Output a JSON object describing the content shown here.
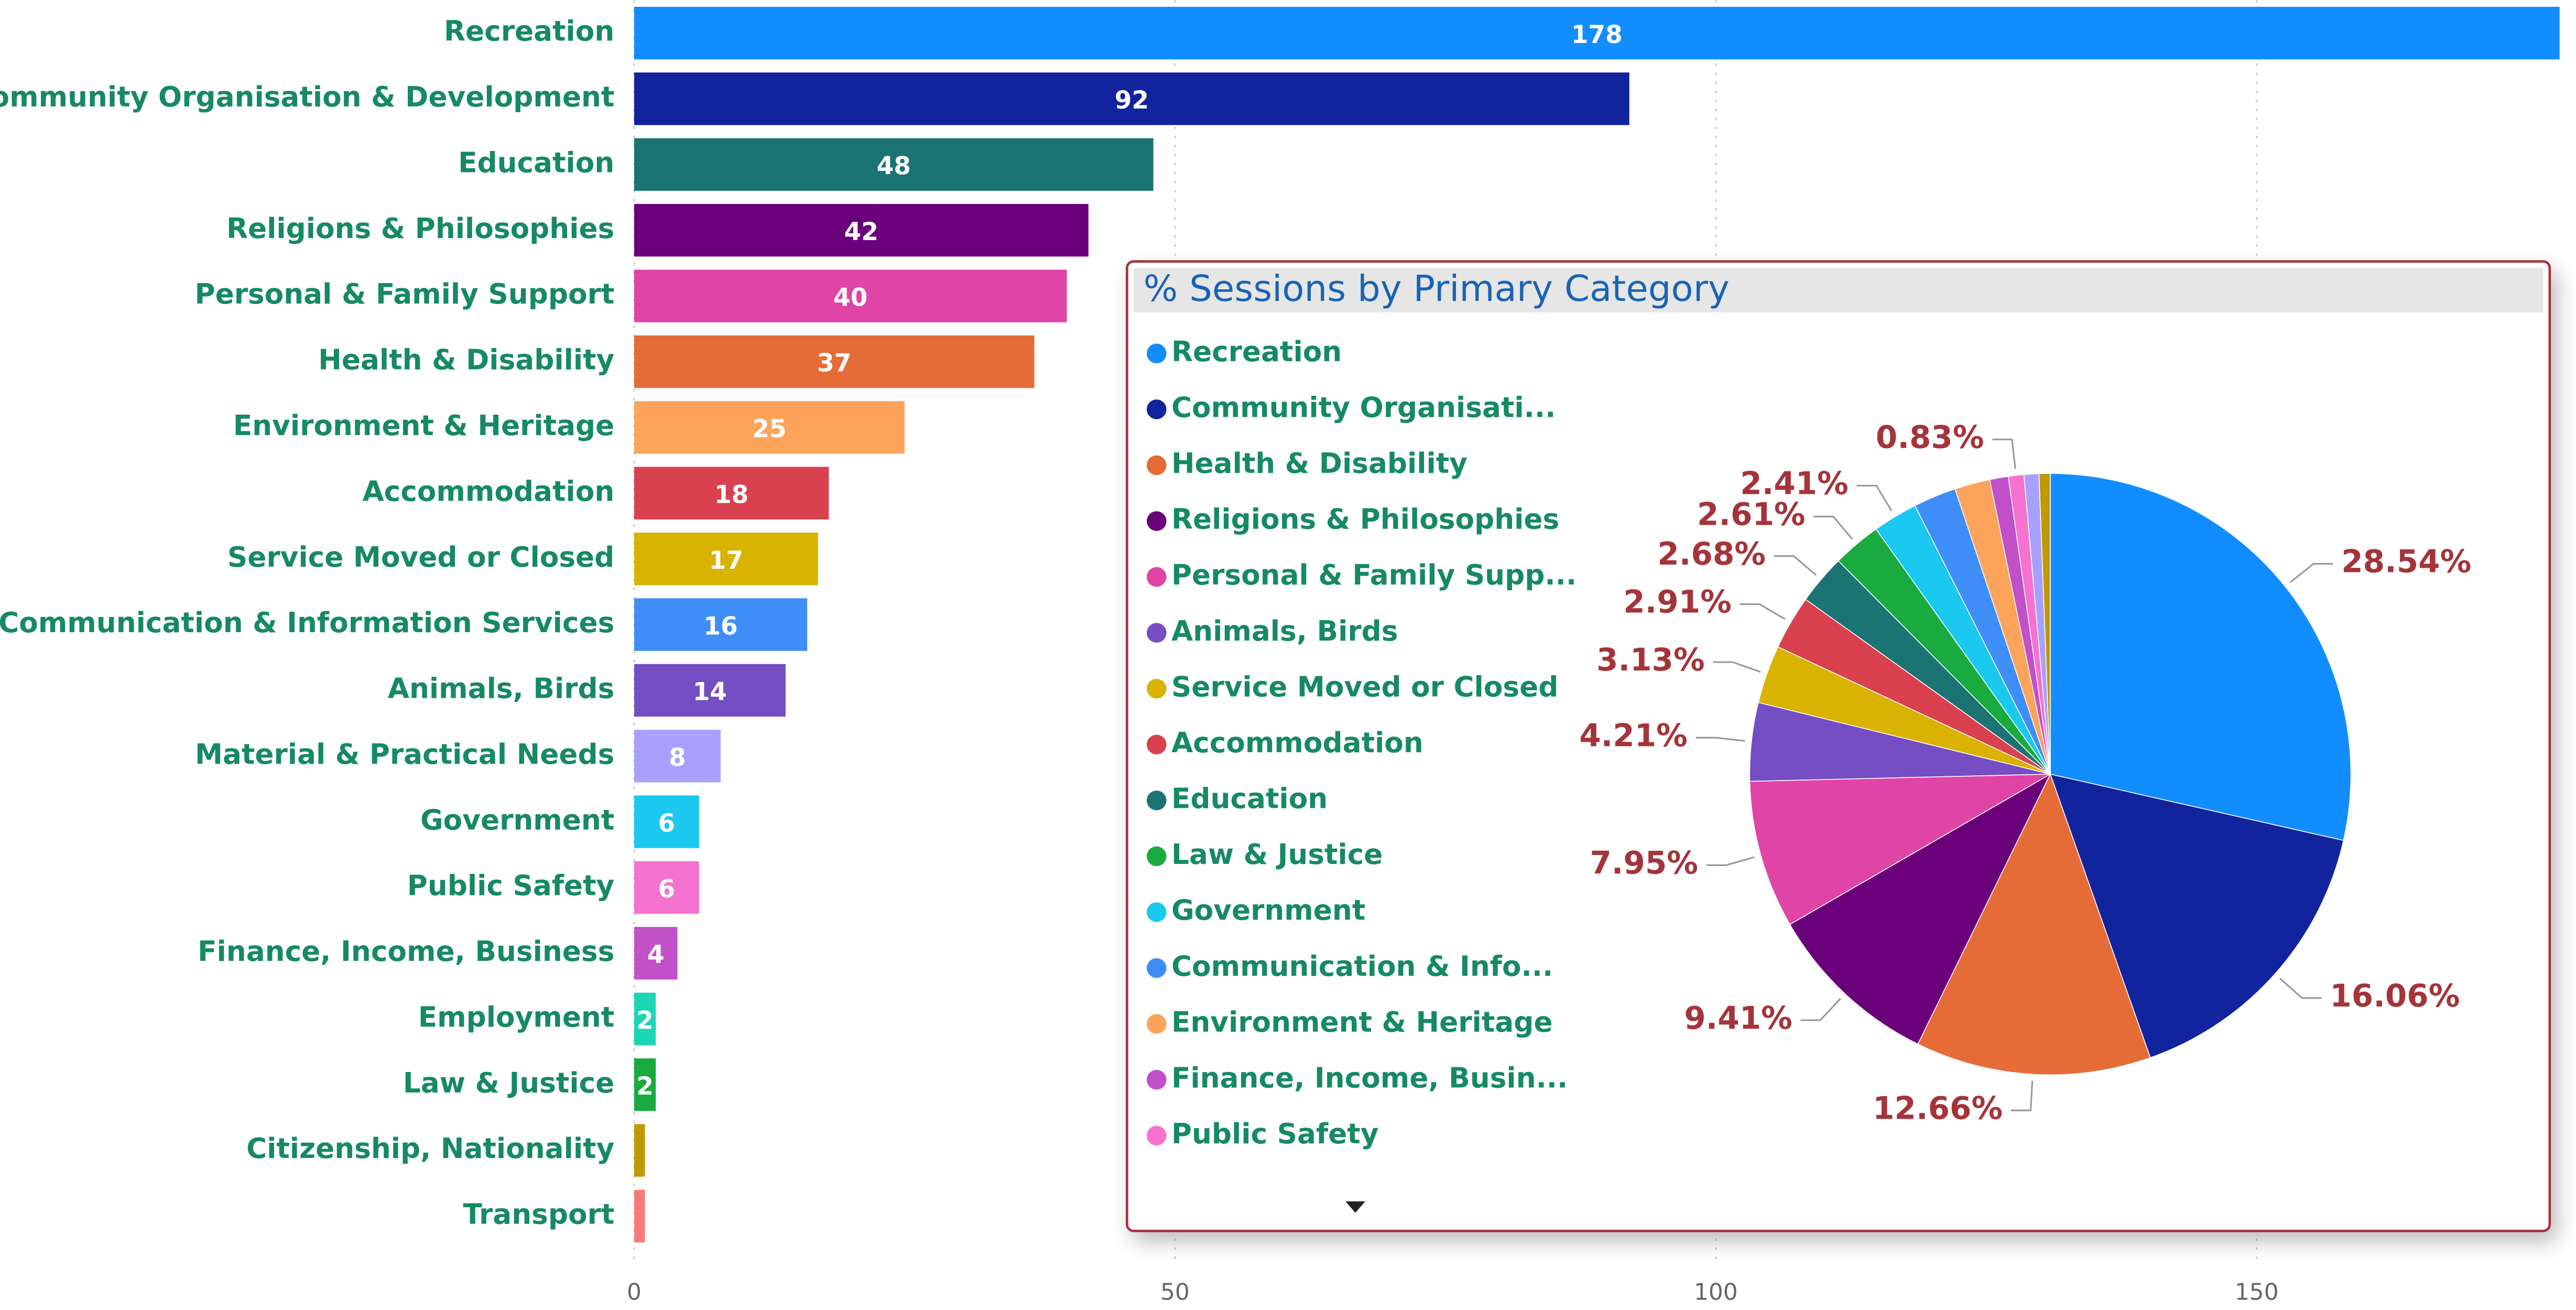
{
  "chart_data": [
    {
      "type": "hbar",
      "categories": [
        "Recreation",
        "Community Organisation & Development",
        "Education",
        "Religions & Philosophies",
        "Personal & Family Support",
        "Health & Disability",
        "Environment & Heritage",
        "Accommodation",
        "Service Moved or Closed",
        "Communication & Information Services",
        "Animals, Birds",
        "Material & Practical Needs",
        "Government",
        "Public Safety",
        "Finance, Income, Business",
        "Employment",
        "Law & Justice",
        "Citizenship, Nationality",
        "Transport"
      ],
      "values": [
        178,
        92,
        48,
        42,
        40,
        37,
        25,
        18,
        17,
        16,
        14,
        8,
        6,
        6,
        4,
        2,
        2,
        1,
        1
      ],
      "value_labels": [
        "178",
        "92",
        "48",
        "42",
        "40",
        "37",
        "25",
        "18",
        "17",
        "16",
        "14",
        "8",
        "6",
        "6",
        "4",
        "2",
        "2",
        null,
        null
      ],
      "colors": [
        "#118dff",
        "#12239e",
        "#1b7374",
        "#6b007b",
        "#e044a7",
        "#e66c37",
        "#fea35a",
        "#d9414f",
        "#d9b300",
        "#3f8ef8",
        "#744ec2",
        "#a8a0ff",
        "#1ac8f0",
        "#f472d0",
        "#c250c8",
        "#1bd6b6",
        "#1aab40",
        "#c09a00",
        "#f87b7b"
      ],
      "xlim": [
        0,
        178
      ],
      "xticks": [
        0,
        50,
        100,
        150
      ],
      "grid": true
    },
    {
      "type": "pie",
      "title": "% Sessions by Primary Category",
      "categories": [
        "Recreation",
        "Community Organisati...",
        "Health & Disability",
        "Religions & Philosophies",
        "Personal & Family Supp...",
        "Animals, Birds",
        "Service Moved or Closed",
        "Accommodation",
        "Education",
        "Law & Justice",
        "Government",
        "Communication & Info...",
        "Environment & Heritage",
        "Finance, Income, Busin...",
        "Public Safety",
        null,
        null
      ],
      "values": [
        28.54,
        16.06,
        12.66,
        9.41,
        7.95,
        4.21,
        3.13,
        2.91,
        2.68,
        2.61,
        2.41,
        2.3,
        1.9,
        1.0,
        0.83,
        0.8,
        0.6
      ],
      "value_labels": [
        "28.54%",
        "16.06%",
        "12.66%",
        "9.41%",
        "7.95%",
        "4.21%",
        "3.13%",
        "2.91%",
        "2.68%",
        "2.61%",
        "2.41%",
        null,
        null,
        null,
        "0.83%",
        null,
        null
      ],
      "colors": [
        "#118dff",
        "#12239e",
        "#e66c37",
        "#6b007b",
        "#e044a7",
        "#744ec2",
        "#d9b300",
        "#d9414f",
        "#1b7374",
        "#1aab40",
        "#1ac8f0",
        "#3f8ef8",
        "#fea35a",
        "#c250c8",
        "#f472d0",
        "#a8a0ff",
        "#c09a00"
      ]
    }
  ]
}
